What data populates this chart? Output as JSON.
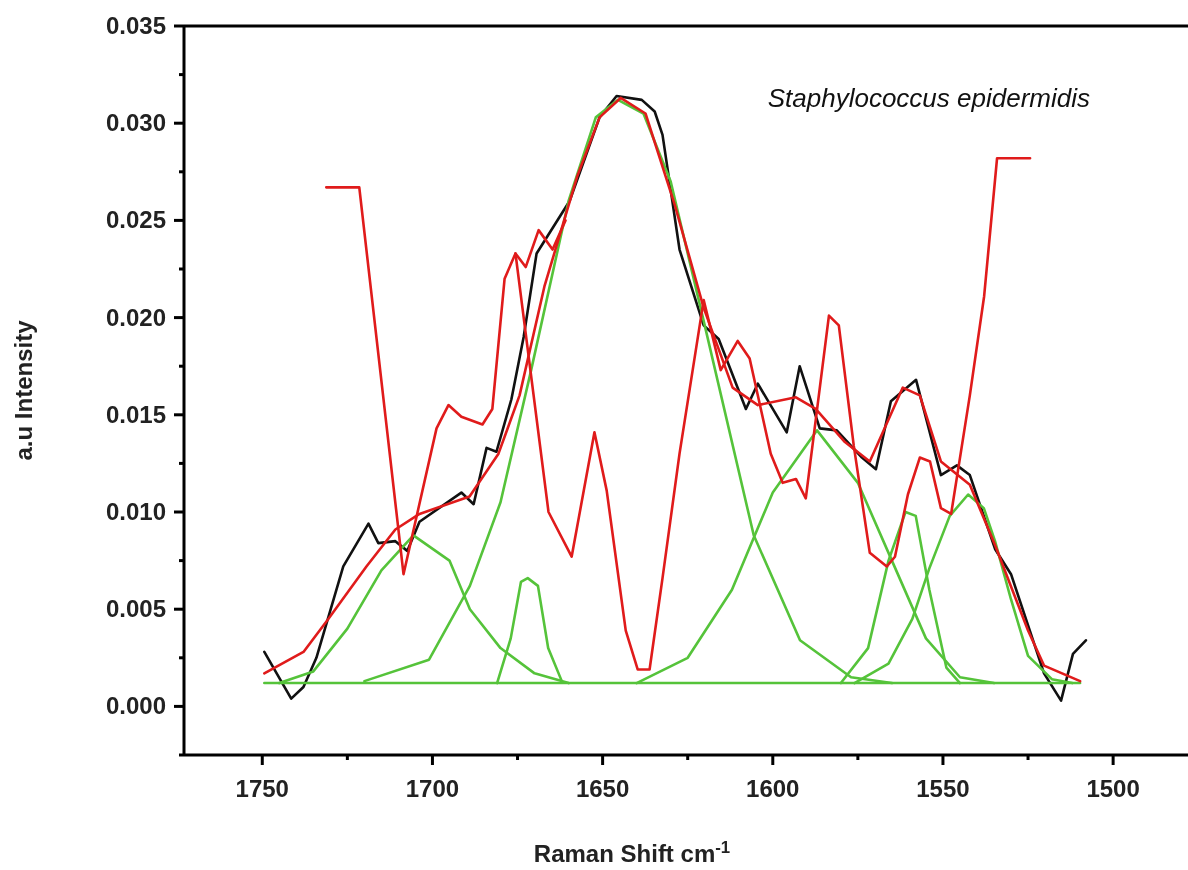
{
  "chart_data": {
    "type": "line",
    "xlabel": "Raman Shift cm$^{-1}$",
    "ylabel": "a.u Intensity",
    "annotations": [
      "Staphylococcus epidermidis"
    ],
    "xlim": [
      1773,
      1478
    ],
    "ylim": [
      -0.0025,
      0.035
    ],
    "xticks": [
      1750,
      {
        "value": 1725,
        "label": null
      },
      1700,
      {
        "value": 1675,
        "label": null
      },
      1650,
      {
        "value": 1625,
        "label": null
      },
      1600,
      {
        "value": 1575,
        "label": null
      },
      1550,
      {
        "value": 1525,
        "label": null
      },
      1500
    ],
    "yticks": [
      {
        "value": -0.0025,
        "label": null
      },
      "0.000",
      {
        "value": 0.0025,
        "label": null
      },
      0.005,
      {
        "value": 0.0075,
        "label": null
      },
      "0.010",
      {
        "value": 0.0125,
        "label": null
      },
      0.015,
      {
        "value": 0.0175,
        "label": null
      },
      "0.020",
      {
        "value": 0.0225,
        "label": null
      },
      0.025,
      {
        "value": 0.0275,
        "label": null
      },
      "0.030",
      {
        "value": 0.0325,
        "label": null
      },
      0.035
    ],
    "grid": false,
    "marker": "none",
    "line_style": "solid",
    "series": [
      {
        "color": "#111111",
        "x": [
          1749.4,
          1741.5,
          1737.9,
          1734.1,
          1726.2,
          1718.8,
          1715.9,
          1710.9,
          1707.4,
          1703.8,
          1691.5,
          1687.9,
          1684.1,
          1681.2,
          1676.8,
          1673.2,
          1669.4,
          1659.7,
          1650.9,
          1645.9,
          1638.5,
          1634.7,
          1632.4,
          1627.4,
          1620.3,
          1615.9,
          1607.9,
          1604.4,
          1595.9,
          1592.1,
          1586.2,
          1581.2,
          1573.8,
          1569.7,
          1565.3,
          1557.9,
          1550.6,
          1545.9,
          1542.1,
          1534.7,
          1530,
          1520.3,
          1515.3,
          1511.8,
          1508
        ],
        "values": [
          0.0028,
          0.0004,
          0.001,
          0.0025,
          0.0072,
          0.0094,
          0.0084,
          0.0085,
          0.008,
          0.0095,
          0.011,
          0.0104,
          0.0133,
          0.0131,
          0.0158,
          0.019,
          0.0233,
          0.026,
          0.0303,
          0.0314,
          0.0312,
          0.0306,
          0.0294,
          0.0235,
          0.0196,
          0.0189,
          0.0153,
          0.0166,
          0.0141,
          0.0175,
          0.0143,
          0.0142,
          0.0128,
          0.0122,
          0.0157,
          0.0168,
          0.0119,
          0.0124,
          0.0119,
          0.0081,
          0.0068,
          0.0017,
          0.0003,
          0.0027,
          0.0034
        ]
      },
      {
        "color": "#55c33a",
        "x": [
          1749.4,
          1509.7
        ],
        "values": [
          0.0012,
          0.0012
        ]
      },
      {
        "color": "#55c33a",
        "x": [
          1745,
          1735,
          1725,
          1715,
          1705.6,
          1695,
          1689,
          1680,
          1670,
          1660
        ],
        "values": [
          0.0012,
          0.0018,
          0.004,
          0.007,
          0.0088,
          0.0075,
          0.005,
          0.003,
          0.0017,
          0.0012
        ]
      },
      {
        "color": "#55c33a",
        "x": [
          1720,
          1701,
          1689,
          1680,
          1671,
          1660,
          1652,
          1645.5,
          1638,
          1630,
          1620,
          1605.6,
          1592,
          1577,
          1565
        ],
        "values": [
          0.0013,
          0.0024,
          0.0062,
          0.0105,
          0.0173,
          0.026,
          0.0303,
          0.0312,
          0.0305,
          0.027,
          0.0196,
          0.0088,
          0.0034,
          0.0015,
          0.0012
        ]
      },
      {
        "color": "#55c33a",
        "x": [
          1681,
          1677,
          1674,
          1672,
          1669,
          1666,
          1662
        ],
        "values": [
          0.0012,
          0.0035,
          0.0064,
          0.0066,
          0.0062,
          0.003,
          0.0013
        ]
      },
      {
        "color": "#55c33a",
        "x": [
          1640,
          1625,
          1612,
          1600,
          1587,
          1575,
          1564,
          1555,
          1545,
          1535
        ],
        "values": [
          0.0012,
          0.0025,
          0.006,
          0.011,
          0.0142,
          0.0115,
          0.0071,
          0.0035,
          0.0015,
          0.0012
        ]
      },
      {
        "color": "#55c33a",
        "x": [
          1580,
          1572,
          1566,
          1561,
          1558,
          1554,
          1549,
          1545
        ],
        "values": [
          0.0012,
          0.003,
          0.0075,
          0.01,
          0.0098,
          0.006,
          0.002,
          0.0012
        ]
      },
      {
        "color": "#55c33a",
        "x": [
          1576,
          1566,
          1559,
          1554,
          1548,
          1542.6,
          1538,
          1534.7,
          1530,
          1525,
          1518,
          1512
        ],
        "values": [
          0.0012,
          0.0022,
          0.0045,
          0.0071,
          0.0098,
          0.0109,
          0.0102,
          0.0085,
          0.0055,
          0.0026,
          0.0014,
          0.0012
        ]
      },
      {
        "color": "#e01b1b",
        "x": [
          1749.4,
          1737.9,
          1730.6,
          1719.4,
          1710.9,
          1703.8,
          1689.1,
          1680.6,
          1674.4,
          1667.1,
          1657.4,
          1650.9,
          1644.7,
          1637.4,
          1628.8,
          1620.3,
          1611.8,
          1604.4,
          1593.2,
          1587.4,
          1578.8,
          1571.5,
          1561.8,
          1556.8,
          1550.6,
          1542.1,
          1534.7,
          1525,
          1520.3,
          1509.7
        ],
        "values": [
          0.0017,
          0.0028,
          0.0045,
          0.0072,
          0.0091,
          0.0099,
          0.0108,
          0.013,
          0.016,
          0.0216,
          0.0273,
          0.0303,
          0.0313,
          0.0305,
          0.0258,
          0.0205,
          0.0164,
          0.0155,
          0.0159,
          0.0153,
          0.0136,
          0.0126,
          0.0164,
          0.016,
          0.0126,
          0.0114,
          0.0083,
          0.0039,
          0.0021,
          0.0013
        ]
      },
      {
        "color": "#e01b1b",
        "x": [
          1731.2,
          1721.5,
          1708.5,
          1698.8,
          1695.3,
          1691.5,
          1685.3,
          1682.4,
          1678.8,
          1675.6,
          1672.6,
          1668.8,
          1664.7,
          1660.9
        ],
        "values": [
          0.0267,
          0.0267,
          0.0068,
          0.0143,
          0.0155,
          0.0149,
          0.0145,
          0.0153,
          0.022,
          0.0233,
          0.0226,
          0.0245,
          0.0235,
          0.025
        ]
      },
      {
        "color": "#e01b1b",
        "x": [
          1675.6,
          1665.9,
          1659.1,
          1652.4,
          1648.8,
          1643.2,
          1639.7,
          1636.2,
          1632.4,
          1627.4,
          1620.3,
          1615.3,
          1610.3,
          1606.8,
          1600.6,
          1597.1,
          1593.2,
          1590.3,
          1583.5,
          1580.6,
          1576.2,
          1571.5,
          1566.5,
          1564.1,
          1560.3,
          1556.8,
          1553.8,
          1550.6,
          1547.6,
          1542.1,
          1537.9,
          1534.1,
          1524.4
        ],
        "values": [
          0.0233,
          0.01,
          0.0077,
          0.0141,
          0.0111,
          0.0039,
          0.0019,
          0.0019,
          0.0066,
          0.013,
          0.0209,
          0.0173,
          0.0188,
          0.0179,
          0.013,
          0.0115,
          0.0117,
          0.0107,
          0.0201,
          0.0196,
          0.0134,
          0.0079,
          0.0072,
          0.0077,
          0.0109,
          0.0128,
          0.0126,
          0.0102,
          0.0099,
          0.016,
          0.0211,
          0.0282,
          0.0282
        ]
      }
    ]
  }
}
